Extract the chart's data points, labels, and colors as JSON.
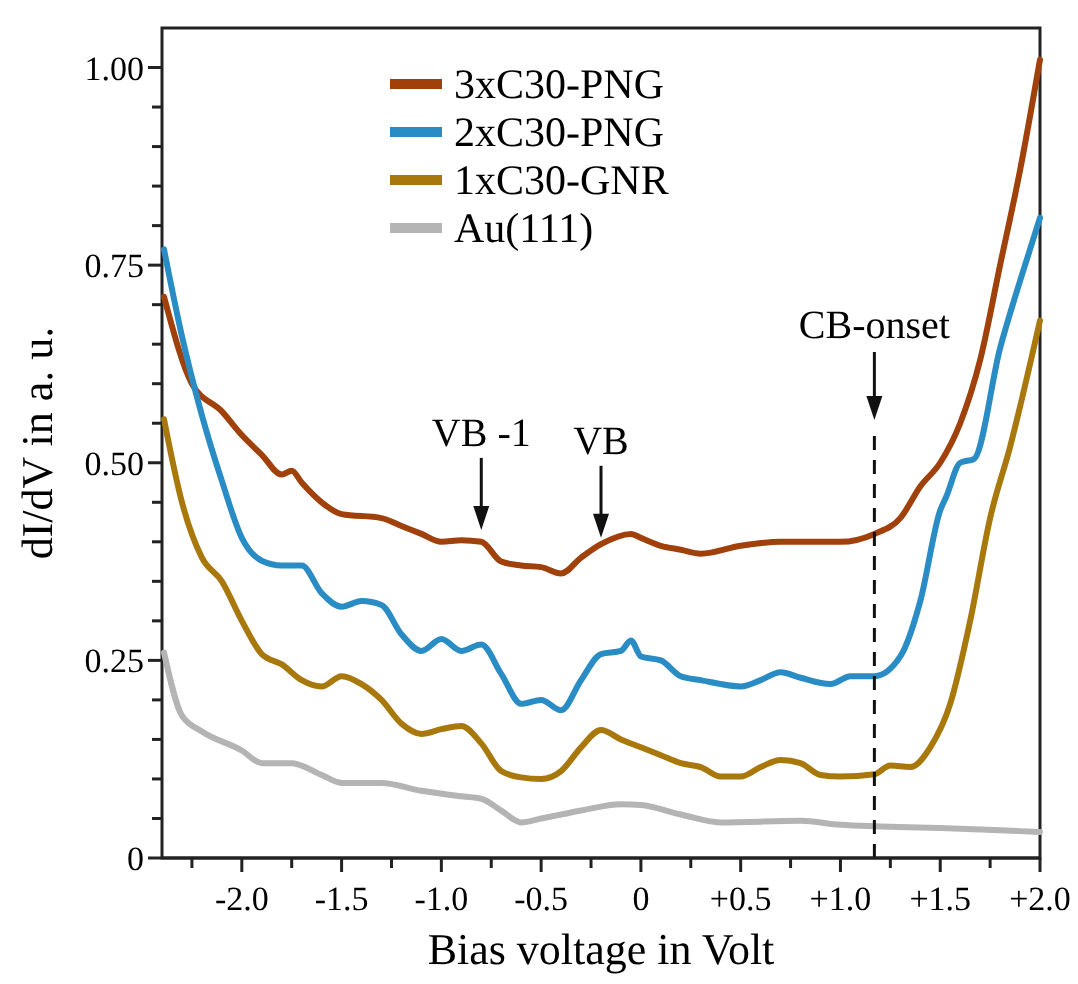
{
  "chart_data": {
    "type": "line",
    "xlabel": "Bias voltage in Volt",
    "ylabel": "dI/dV in a. u.",
    "xlim": [
      -2.4,
      2.0
    ],
    "ylim": [
      0,
      1.05
    ],
    "xticks": [
      {
        "value": -2.25,
        "label": null
      },
      {
        "value": -2.0,
        "label": "-2.0"
      },
      {
        "value": -1.75,
        "label": null
      },
      {
        "value": -1.5,
        "label": "-1.5"
      },
      {
        "value": -1.25,
        "label": null
      },
      {
        "value": -1.0,
        "label": "-1.0"
      },
      {
        "value": -0.75,
        "label": null
      },
      {
        "value": -0.5,
        "label": "-0.5"
      },
      {
        "value": -0.25,
        "label": null
      },
      {
        "value": 0,
        "label": "0"
      },
      {
        "value": 0.25,
        "label": null
      },
      {
        "value": 0.5,
        "label": "+0.5"
      },
      {
        "value": 0.75,
        "label": null
      },
      {
        "value": 1.0,
        "label": "+1.0"
      },
      {
        "value": 1.25,
        "label": null
      },
      {
        "value": 1.5,
        "label": "+1.5"
      },
      {
        "value": 1.75,
        "label": null
      },
      {
        "value": 2.0,
        "label": "+2.0"
      }
    ],
    "yticks": [
      {
        "value": 0,
        "label": "0"
      },
      {
        "value": 0.05,
        "label": null
      },
      {
        "value": 0.1,
        "label": null
      },
      {
        "value": 0.15,
        "label": null
      },
      {
        "value": 0.2,
        "label": null
      },
      {
        "value": 0.25,
        "label": "0.25"
      },
      {
        "value": 0.3,
        "label": null
      },
      {
        "value": 0.35,
        "label": null
      },
      {
        "value": 0.4,
        "label": null
      },
      {
        "value": 0.45,
        "label": null
      },
      {
        "value": 0.5,
        "label": "0.50"
      },
      {
        "value": 0.55,
        "label": null
      },
      {
        "value": 0.6,
        "label": null
      },
      {
        "value": 0.65,
        "label": null
      },
      {
        "value": 0.7,
        "label": null
      },
      {
        "value": 0.75,
        "label": "0.75"
      },
      {
        "value": 0.8,
        "label": null
      },
      {
        "value": 0.85,
        "label": null
      },
      {
        "value": 0.9,
        "label": null
      },
      {
        "value": 0.95,
        "label": null
      },
      {
        "value": 1.0,
        "label": "1.00"
      }
    ],
    "grid": false,
    "legend": "top",
    "marker": "none",
    "line_style": "solid",
    "series": [
      {
        "name": "3xC30-PNG",
        "color": "#a0400a",
        "x": [
          -2.39,
          -2.25,
          -2.1,
          -2.0,
          -1.9,
          -1.8,
          -1.75,
          -1.7,
          -1.6,
          -1.5,
          -1.3,
          -1.2,
          -1.1,
          -1.0,
          -0.9,
          -0.8,
          -0.7,
          -0.6,
          -0.5,
          -0.4,
          -0.3,
          -0.2,
          -0.05,
          0,
          0.1,
          0.2,
          0.3,
          0.5,
          0.7,
          0.9,
          1.0,
          1.17,
          1.3,
          1.4,
          1.5,
          1.6,
          1.7,
          1.8,
          1.9,
          2.0
        ],
        "values": [
          0.71,
          0.6,
          0.565,
          0.535,
          0.51,
          0.485,
          0.49,
          0.475,
          0.45,
          0.435,
          0.43,
          0.42,
          0.41,
          0.4,
          0.402,
          0.4,
          0.375,
          0.37,
          0.368,
          0.36,
          0.38,
          0.397,
          0.41,
          0.405,
          0.395,
          0.39,
          0.385,
          0.395,
          0.4,
          0.4,
          0.4,
          0.41,
          0.43,
          0.47,
          0.5,
          0.55,
          0.63,
          0.75,
          0.87,
          1.01
        ]
      },
      {
        "name": "2xC30-PNG",
        "color": "#2a8cc4",
        "x": [
          -2.39,
          -2.3,
          -2.2,
          -2.1,
          -2.0,
          -1.9,
          -1.8,
          -1.7,
          -1.6,
          -1.5,
          -1.4,
          -1.3,
          -1.2,
          -1.1,
          -1.0,
          -0.9,
          -0.8,
          -0.7,
          -0.6,
          -0.5,
          -0.4,
          -0.3,
          -0.2,
          -0.1,
          -0.05,
          0,
          0.1,
          0.2,
          0.3,
          0.5,
          0.6,
          0.7,
          0.8,
          0.95,
          1.05,
          1.17,
          1.3,
          1.4,
          1.5,
          1.53,
          1.6,
          1.67,
          1.8,
          1.9,
          2.0
        ],
        "values": [
          0.77,
          0.66,
          0.56,
          0.477,
          0.405,
          0.376,
          0.37,
          0.37,
          0.335,
          0.318,
          0.325,
          0.32,
          0.283,
          0.262,
          0.277,
          0.262,
          0.27,
          0.233,
          0.195,
          0.2,
          0.187,
          0.225,
          0.258,
          0.262,
          0.275,
          0.255,
          0.25,
          0.23,
          0.225,
          0.217,
          0.225,
          0.235,
          0.228,
          0.22,
          0.23,
          0.23,
          0.255,
          0.325,
          0.44,
          0.457,
          0.5,
          0.505,
          0.645,
          0.73,
          0.81
        ]
      },
      {
        "name": "1xC30-GNR",
        "color": "#a8780c",
        "x": [
          -2.39,
          -2.3,
          -2.2,
          -2.1,
          -2.0,
          -1.9,
          -1.8,
          -1.7,
          -1.6,
          -1.5,
          -1.4,
          -1.3,
          -1.2,
          -1.1,
          -1.0,
          -0.9,
          -0.8,
          -0.7,
          -0.6,
          -0.5,
          -0.4,
          -0.3,
          -0.2,
          -0.1,
          0,
          0.1,
          0.2,
          0.3,
          0.4,
          0.5,
          0.6,
          0.7,
          0.8,
          0.9,
          1.0,
          1.17,
          1.25,
          1.35,
          1.45,
          1.55,
          1.65,
          1.75,
          1.85,
          2.0
        ],
        "values": [
          0.555,
          0.45,
          0.38,
          0.35,
          0.3,
          0.258,
          0.245,
          0.225,
          0.217,
          0.23,
          0.22,
          0.2,
          0.17,
          0.157,
          0.163,
          0.167,
          0.145,
          0.11,
          0.102,
          0.1,
          0.11,
          0.14,
          0.162,
          0.15,
          0.14,
          0.13,
          0.12,
          0.115,
          0.103,
          0.103,
          0.115,
          0.124,
          0.12,
          0.105,
          0.103,
          0.106,
          0.117,
          0.115,
          0.14,
          0.195,
          0.3,
          0.43,
          0.52,
          0.68
        ]
      },
      {
        "name": "Au(111)",
        "color": "#b4b4b4",
        "x": [
          -2.39,
          -2.3,
          -2.2,
          -2.0,
          -1.9,
          -1.75,
          -1.6,
          -1.5,
          -1.3,
          -1.1,
          -0.9,
          -0.8,
          -0.7,
          -0.6,
          -0.5,
          -0.4,
          -0.3,
          -0.1,
          0,
          0.2,
          0.4,
          0.8,
          1.0,
          1.2,
          1.5,
          1.8,
          2.0
        ],
        "values": [
          0.26,
          0.18,
          0.16,
          0.136,
          0.12,
          0.12,
          0.105,
          0.095,
          0.095,
          0.085,
          0.078,
          0.075,
          0.06,
          0.045,
          0.05,
          0.055,
          0.06,
          0.068,
          0.067,
          0.055,
          0.045,
          0.047,
          0.042,
          0.04,
          0.038,
          0.035,
          0.033
        ]
      }
    ],
    "ref_lines": [
      {
        "axis": "x",
        "value": 1.17,
        "label": "CB-onset",
        "line_style": "dashed"
      }
    ],
    "annotations": [
      {
        "text": "VB -1",
        "x": -0.8,
        "y": 0.41
      },
      {
        "text": "VB",
        "x": -0.2,
        "y": 0.4
      }
    ]
  }
}
